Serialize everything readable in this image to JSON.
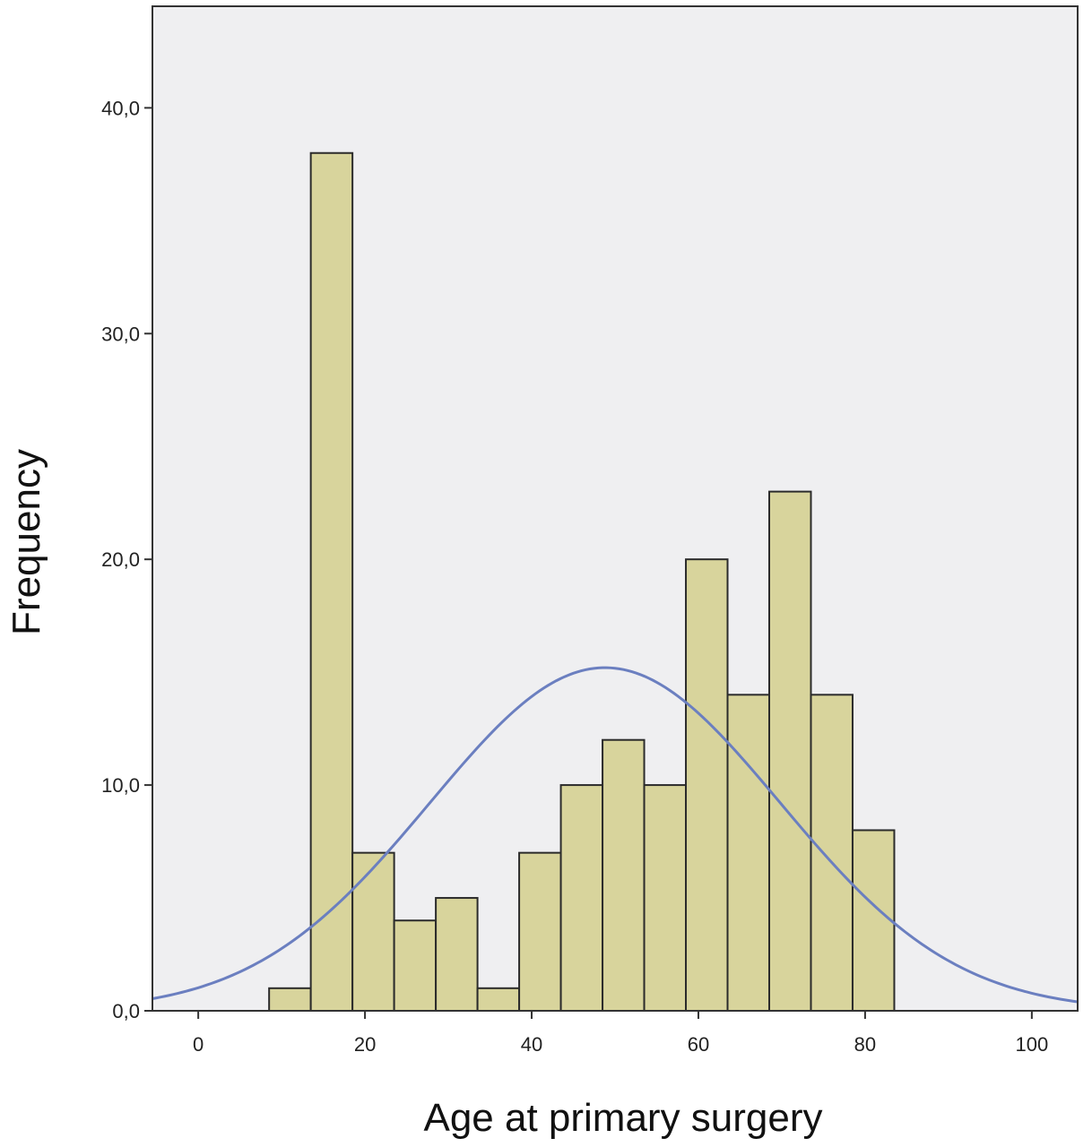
{
  "chart_data": {
    "type": "bar",
    "title": "",
    "xlabel": "Age at primary surgery",
    "ylabel": "Frequency",
    "xlim": [
      -5.5,
      105.5
    ],
    "ylim": [
      0,
      44.5
    ],
    "x_ticks": [
      0,
      20,
      40,
      60,
      80,
      100
    ],
    "x_tick_labels": [
      "0",
      "20",
      "40",
      "60",
      "80",
      "100"
    ],
    "y_ticks": [
      0,
      10,
      20,
      30,
      40
    ],
    "y_tick_labels": [
      "0,0",
      "10,0",
      "20,0",
      "30,0",
      "40,0"
    ],
    "grid": false,
    "bins": [
      {
        "start": 8.5,
        "end": 13.5,
        "count": 1
      },
      {
        "start": 13.5,
        "end": 18.5,
        "count": 38
      },
      {
        "start": 18.5,
        "end": 23.5,
        "count": 7
      },
      {
        "start": 23.5,
        "end": 28.5,
        "count": 4
      },
      {
        "start": 28.5,
        "end": 33.5,
        "count": 5
      },
      {
        "start": 33.5,
        "end": 38.5,
        "count": 1
      },
      {
        "start": 38.5,
        "end": 43.5,
        "count": 7
      },
      {
        "start": 43.5,
        "end": 48.5,
        "count": 10
      },
      {
        "start": 48.5,
        "end": 53.5,
        "count": 12
      },
      {
        "start": 53.5,
        "end": 58.5,
        "count": 10
      },
      {
        "start": 58.5,
        "end": 63.5,
        "count": 20
      },
      {
        "start": 63.5,
        "end": 68.5,
        "count": 14
      },
      {
        "start": 68.5,
        "end": 73.5,
        "count": 23
      },
      {
        "start": 73.5,
        "end": 78.5,
        "count": 14
      },
      {
        "start": 78.5,
        "end": 83.5,
        "count": 8
      }
    ],
    "normal_curve": {
      "mean": 48.8,
      "sd": 21.0,
      "peak": 15.2
    },
    "colors": {
      "bar_fill": "#d8d49c",
      "bar_stroke": "#2b2b2b",
      "plot_background": "#efeff1",
      "curve": "#6b7fc0"
    }
  }
}
